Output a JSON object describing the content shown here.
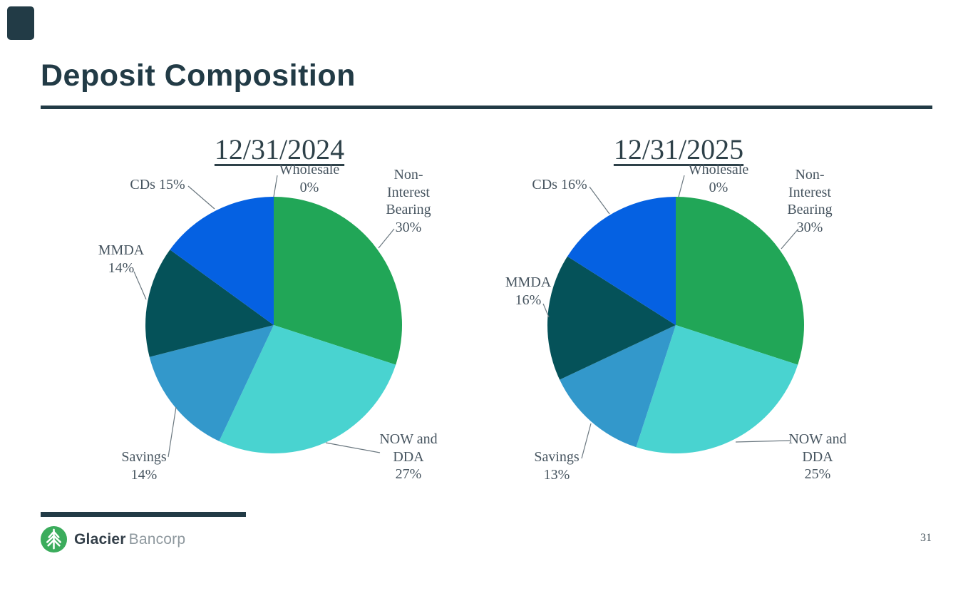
{
  "slide": {
    "title": "Deposit Composition",
    "page_number": "31"
  },
  "brand": {
    "name_bold": "Glacier",
    "name_light": "Bancorp"
  },
  "colors": {
    "accent": "#223b46",
    "label_text": "#475560",
    "leader_line": "#6b7880",
    "logo_green": "#3bac5c",
    "brand_gray": "#8e989e",
    "chart_title": "#2e4149"
  },
  "chart_data": [
    {
      "type": "pie",
      "title": "12/31/2024",
      "legend_position": "outside-callouts",
      "start_angle_deg": 0,
      "direction": "clockwise",
      "categories": [
        "Non-Interest Bearing",
        "NOW and DDA",
        "Savings",
        "MMDA",
        "CDs",
        "Wholesale"
      ],
      "values": [
        30,
        27,
        14,
        14,
        15,
        0
      ],
      "colors": [
        "#21a657",
        "#49d3d0",
        "#3398cb",
        "#055259",
        "#0561e2",
        "#8b98a0"
      ],
      "labels": [
        [
          "Non-",
          "Interest",
          "Bearing",
          "30%"
        ],
        [
          "NOW and",
          "DDA",
          "27%"
        ],
        [
          "Savings",
          "14%"
        ],
        [
          "MMDA",
          "14%"
        ],
        [
          "CDs 15%"
        ],
        [
          "Wholesale",
          "0%"
        ]
      ]
    },
    {
      "type": "pie",
      "title": "12/31/2025",
      "legend_position": "outside-callouts",
      "start_angle_deg": 0,
      "direction": "clockwise",
      "categories": [
        "Non-Interest Bearing",
        "NOW and DDA",
        "Savings",
        "MMDA",
        "CDs",
        "Wholesale"
      ],
      "values": [
        30,
        25,
        13,
        16,
        16,
        0
      ],
      "colors": [
        "#21a657",
        "#49d3d0",
        "#3398cb",
        "#055259",
        "#0561e2",
        "#8b98a0"
      ],
      "labels": [
        [
          "Non-",
          "Interest",
          "Bearing",
          "30%"
        ],
        [
          "NOW and",
          "DDA",
          "25%"
        ],
        [
          "Savings",
          "13%"
        ],
        [
          "MMDA",
          "16%"
        ],
        [
          "CDs 16%"
        ],
        [
          "Wholesale",
          "0%"
        ]
      ]
    }
  ]
}
